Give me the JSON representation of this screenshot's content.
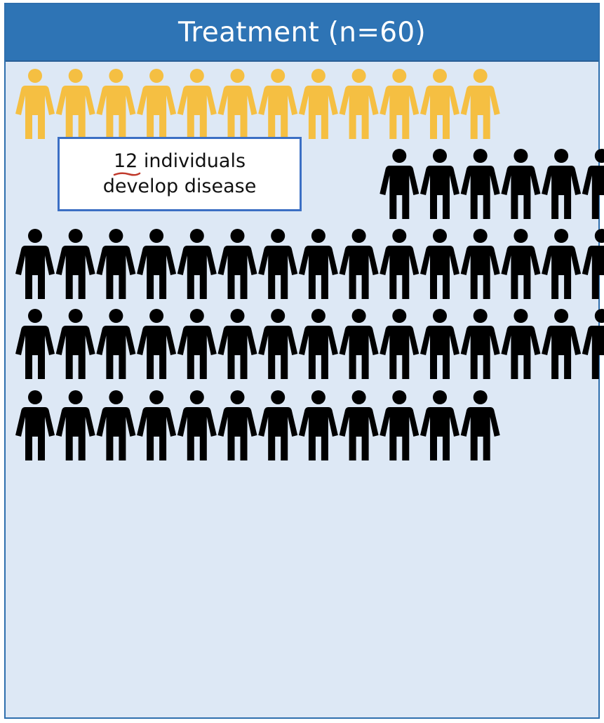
{
  "header": {
    "title": "Treatment (n=60)"
  },
  "callout": {
    "count": "12",
    "line1_rest": " individuals",
    "line2": "develop disease"
  },
  "figure": {
    "total": 60,
    "affected": 12,
    "colors": {
      "affected": "#f5bf42",
      "unaffected": "#000000",
      "panel": "#dde8f5",
      "header": "#2e74b5",
      "callout_border": "#3b6fc4",
      "underline": "#c0392b"
    }
  }
}
